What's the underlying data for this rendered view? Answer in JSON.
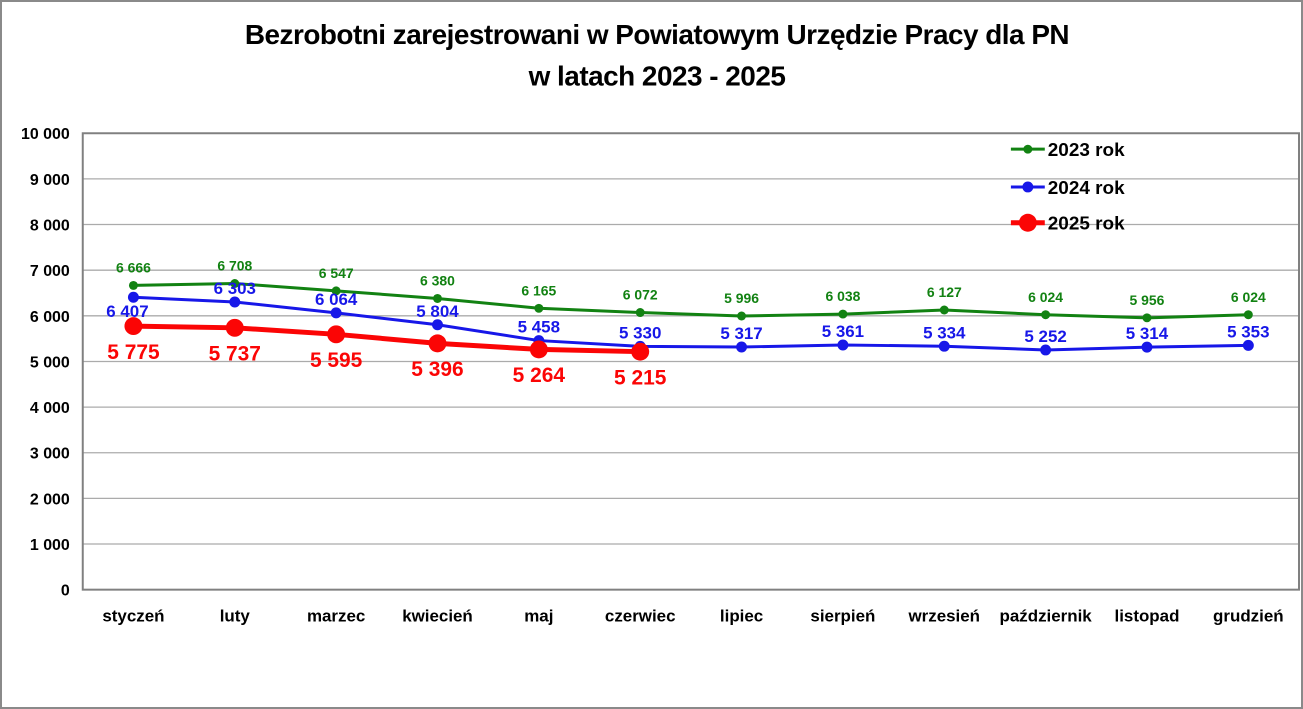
{
  "page": {
    "background": "#FFFFFF",
    "border_color": "#8A8A8A",
    "gridline_color": "#ABABAB",
    "plot_border_color": "#808080",
    "text_color": "#000000"
  },
  "chart_data": {
    "type": "line",
    "title": "Bezrobotni zarejestrowani w Powiatowym Urzędzie Pracy dla PN",
    "subtitle": "w latach 2023 - 2025",
    "categories": [
      "styczeń",
      "luty",
      "marzec",
      "kwiecień",
      "maj",
      "czerwiec",
      "lipiec",
      "sierpień",
      "wrzesień",
      "październik",
      "listopad",
      "grudzień"
    ],
    "series": [
      {
        "name": "2023 rok",
        "color": "#128212",
        "values": [
          6666,
          6708,
          6547,
          6380,
          6165,
          6072,
          5996,
          6038,
          6127,
          6024,
          5956,
          6024
        ]
      },
      {
        "name": "2024 rok",
        "color": "#1717E8",
        "values": [
          6407,
          6303,
          6064,
          5804,
          5458,
          5330,
          5317,
          5361,
          5334,
          5252,
          5314,
          5353
        ]
      },
      {
        "name": "2025 rok",
        "color": "#FB0505",
        "values": [
          5775,
          5737,
          5595,
          5396,
          5264,
          5215
        ]
      }
    ],
    "ylim": [
      0,
      10000
    ],
    "ytick_step": 1000,
    "grid": true,
    "data_labels": true,
    "number_format": "space-thousands",
    "legend_position": "top-right",
    "legend_labels": [
      "2023 rok",
      "2024 rok",
      "2025 rok"
    ]
  }
}
